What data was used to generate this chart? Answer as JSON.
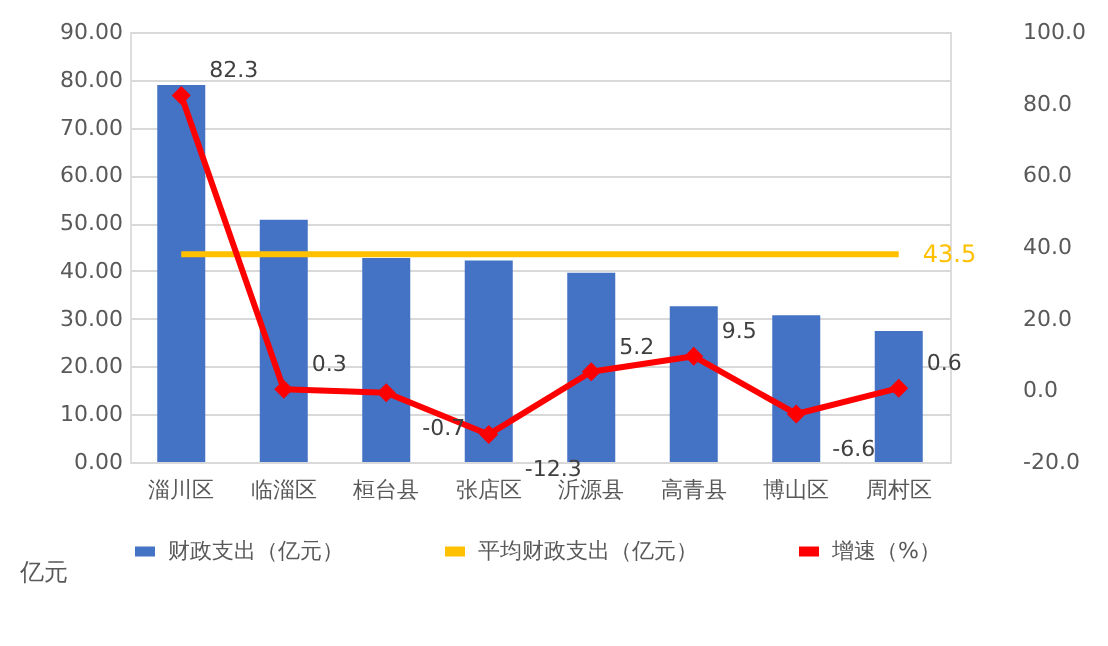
{
  "chart_data": {
    "type": "bar",
    "categories": [
      "淄川区",
      "临淄区",
      "桓台县",
      "张店区",
      "沂源县",
      "高青县",
      "博山区",
      "周村区"
    ],
    "series": [
      {
        "name": "财政支出（亿元）",
        "color": "#4472c4",
        "values": [
          78.9,
          50.7,
          42.7,
          42.2,
          39.6,
          32.6,
          30.7,
          27.4
        ]
      },
      {
        "name": "平均财政支出（亿元）",
        "type": "line",
        "color": "#ffc000",
        "marker": "none",
        "values": [
          43.5,
          43.5,
          43.5,
          43.5,
          43.5,
          43.5,
          43.5,
          43.5
        ],
        "value_labels": [
          null,
          null,
          null,
          null,
          null,
          null,
          null,
          "43.5"
        ]
      },
      {
        "name": "增速（%）",
        "type": "line",
        "color": "#ff0000",
        "axis": "y2",
        "marker": "diamond",
        "values": [
          82.3,
          0.3,
          -0.7,
          -12.3,
          5.2,
          9.5,
          -6.6,
          0.6
        ],
        "value_labels": [
          "82.3",
          "0.3",
          "-0.7",
          "-12.3",
          "5.2",
          "9.5",
          "-6.6",
          "0.6"
        ]
      }
    ],
    "ylim": [
      0,
      90
    ],
    "yticks": [
      {
        "value": 0,
        "label": "0.00"
      },
      {
        "value": 10,
        "label": "10.00"
      },
      {
        "value": 20,
        "label": "20.00"
      },
      {
        "value": 30,
        "label": "30.00"
      },
      {
        "value": 40,
        "label": "40.00"
      },
      {
        "value": 50,
        "label": "50.00"
      },
      {
        "value": 60,
        "label": "60.00"
      },
      {
        "value": 70,
        "label": "70.00"
      },
      {
        "value": 80,
        "label": "80.00"
      },
      {
        "value": 90,
        "label": "90.00"
      }
    ],
    "y2lim": [
      -20,
      100
    ],
    "y2ticks": [
      {
        "value": -20,
        "label": "-20.0"
      },
      {
        "value": 0,
        "label": "0.0"
      },
      {
        "value": 20,
        "label": "20.0"
      },
      {
        "value": 40,
        "label": "40.0"
      },
      {
        "value": 60,
        "label": "60.0"
      },
      {
        "value": 80,
        "label": "80.0"
      },
      {
        "value": 100,
        "label": "100.0"
      }
    ],
    "grid": "y",
    "legend": "bottom",
    "annotations": [
      "亿元"
    ]
  }
}
